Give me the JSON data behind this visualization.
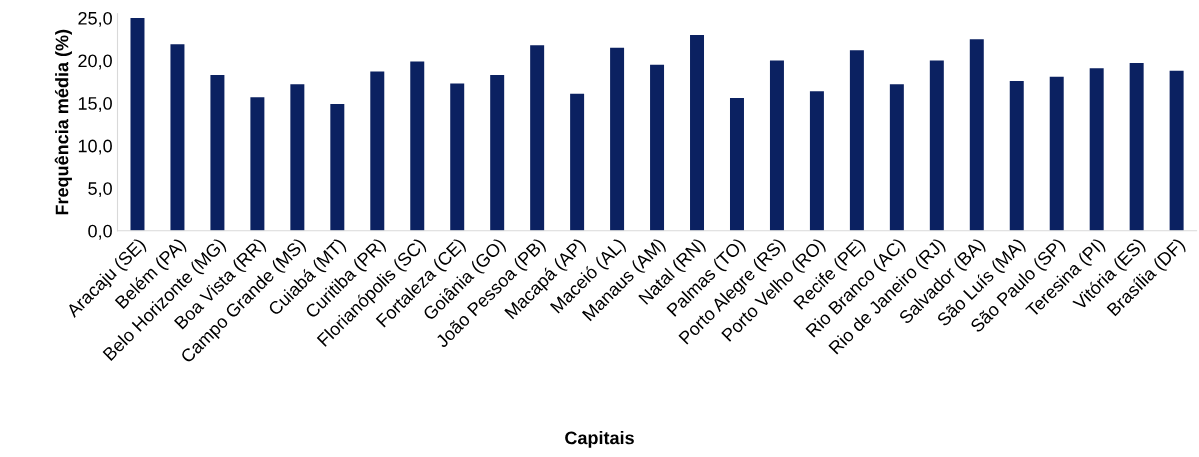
{
  "chart_data": {
    "type": "bar",
    "xlabel": "Capitais",
    "ylabel": "Frequência média (%)",
    "categories": [
      "Aracaju (SE)",
      "Belém (PA)",
      "Belo Horizonte (MG)",
      "Boa Vista (RR)",
      "Campo Grande (MS)",
      "Cuiabá (MT)",
      "Curitiba (PR)",
      "Florianópolis (SC)",
      "Fortaleza (CE)",
      "Goiânia (GO)",
      "João Pessoa (PB)",
      "Macapá (AP)",
      "Maceió (AL)",
      "Manaus (AM)",
      "Natal (RN)",
      "Palmas (TO)",
      "Porto Alegre (RS)",
      "Porto Velho (RO)",
      "Recife (PE)",
      "Rio Branco (AC)",
      "Rio de Janeiro (RJ)",
      "Salvador (BA)",
      "São Luís (MA)",
      "São Paulo (SP)",
      "Teresina (PI)",
      "Vitória (ES)",
      "Brasília (DF)"
    ],
    "values": [
      25.0,
      21.9,
      18.3,
      15.7,
      17.2,
      14.9,
      18.7,
      19.9,
      17.3,
      18.3,
      21.8,
      16.1,
      21.5,
      19.5,
      23.0,
      15.6,
      20.0,
      16.4,
      21.2,
      17.2,
      20.0,
      22.5,
      17.6,
      18.1,
      19.1,
      19.7,
      18.8
    ],
    "color": "#0b2161",
    "ylim": [
      0,
      25.5
    ],
    "yticks": [
      {
        "value": 0,
        "label": "0,0"
      },
      {
        "value": 5,
        "label": "5,0"
      },
      {
        "value": 10,
        "label": "10,0"
      },
      {
        "value": 15,
        "label": "15,0"
      },
      {
        "value": 20,
        "label": "20,0"
      },
      {
        "value": 25,
        "label": "25,0"
      }
    ],
    "grid": false,
    "legend": false
  }
}
